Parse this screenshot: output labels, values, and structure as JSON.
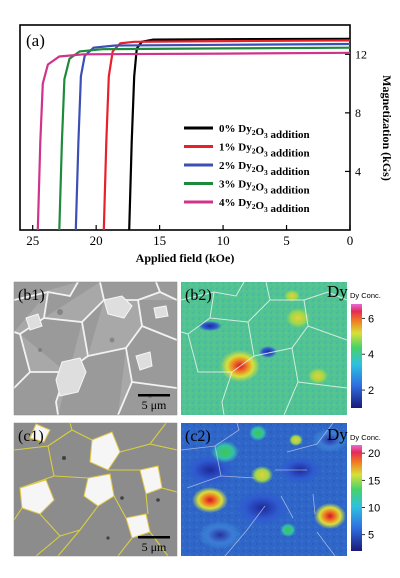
{
  "chart_data": {
    "type": "line",
    "panel_label": "(a)",
    "xlabel": "Applied field (kOe)",
    "ylabel": "Magnetization (kGs)",
    "xlim": [
      26,
      0
    ],
    "ylim": [
      0,
      14
    ],
    "x_ticks": [
      25,
      20,
      15,
      10,
      5,
      0
    ],
    "y_ticks": [
      4,
      8,
      12
    ],
    "series": [
      {
        "name_parts": {
          "pre": "0% Dy",
          "sub": "2",
          "mid": "O",
          "sub2": "3",
          "post": " addition"
        },
        "color": "#000000",
        "points": [
          [
            17.4,
            0
          ],
          [
            17.2,
            6
          ],
          [
            17.0,
            10.5
          ],
          [
            16.8,
            12.4
          ],
          [
            16.4,
            12.85
          ],
          [
            15.5,
            13.0
          ],
          [
            10,
            13.03
          ],
          [
            0,
            13.05
          ]
        ]
      },
      {
        "name_parts": {
          "pre": "1% Dy",
          "sub": "2",
          "mid": "O",
          "sub2": "3",
          "post": " addition"
        },
        "color": "#e8202a",
        "points": [
          [
            19.4,
            0
          ],
          [
            19.2,
            6
          ],
          [
            19.0,
            10.5
          ],
          [
            18.7,
            12.2
          ],
          [
            18.1,
            12.75
          ],
          [
            17.0,
            12.85
          ],
          [
            10,
            12.9
          ],
          [
            0,
            12.95
          ]
        ]
      },
      {
        "name_parts": {
          "pre": "2% Dy",
          "sub": "2",
          "mid": "O",
          "sub2": "3",
          "post": " addition"
        },
        "color": "#3b4fb5",
        "points": [
          [
            21.6,
            0
          ],
          [
            21.4,
            6
          ],
          [
            21.2,
            10.5
          ],
          [
            20.9,
            11.9
          ],
          [
            20.2,
            12.45
          ],
          [
            18.5,
            12.6
          ],
          [
            10,
            12.65
          ],
          [
            0,
            12.7
          ]
        ]
      },
      {
        "name_parts": {
          "pre": "3% Dy",
          "sub": "2",
          "mid": "O",
          "sub2": "3",
          "post": " addition"
        },
        "color": "#1e8a3c",
        "points": [
          [
            22.9,
            0
          ],
          [
            22.7,
            6
          ],
          [
            22.5,
            10.3
          ],
          [
            22.1,
            11.7
          ],
          [
            21.3,
            12.2
          ],
          [
            19.5,
            12.35
          ],
          [
            10,
            12.4
          ],
          [
            0,
            12.45
          ]
        ]
      },
      {
        "name_parts": {
          "pre": "4% Dy",
          "sub": "2",
          "mid": "O",
          "sub2": "3",
          "post": " addition"
        },
        "color": "#d0338a",
        "points": [
          [
            24.6,
            0
          ],
          [
            24.4,
            6
          ],
          [
            24.2,
            10.0
          ],
          [
            23.8,
            11.3
          ],
          [
            22.9,
            11.85
          ],
          [
            21.0,
            12.0
          ],
          [
            10,
            12.05
          ],
          [
            0,
            12.1
          ]
        ]
      }
    ]
  },
  "panels": {
    "b1": "(b1)",
    "b2": "(b2)",
    "c1": "(c1)",
    "c2": "(c2)",
    "scale_b": "5 μm",
    "scale_c": "5 μm",
    "element": "Dy",
    "conc_label": "Dy Conc."
  },
  "colorbar_b": {
    "ticks": [
      6,
      4,
      2
    ],
    "range": [
      1,
      6.8
    ]
  },
  "colorbar_c": {
    "ticks": [
      20,
      15,
      10,
      5
    ],
    "range": [
      2,
      21.5
    ]
  }
}
